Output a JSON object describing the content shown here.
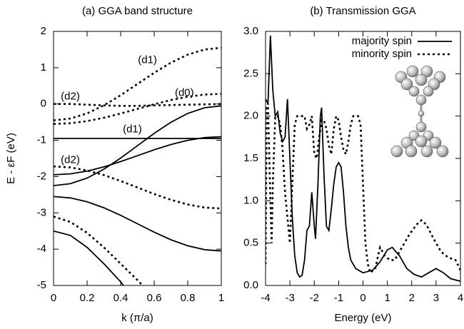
{
  "chart_data": [
    {
      "type": "line",
      "title": "(a) GGA band structure",
      "xlabel": "k (π/a)",
      "ylabel": "E - εF (eV)",
      "xlim": [
        0,
        1
      ],
      "xticks": [
        0,
        0.2,
        0.4,
        0.6,
        0.8,
        1
      ],
      "ylim": [
        -5,
        2
      ],
      "yticks": [
        -5,
        -4,
        -3,
        -2,
        -1,
        0,
        1,
        2
      ],
      "series": [
        {
          "style": "solid",
          "color": "#000000",
          "x": [
            0,
            0.1,
            0.2,
            0.3,
            0.4,
            0.5,
            0.6,
            0.7,
            0.8,
            0.9,
            1
          ],
          "values": [
            -0.95,
            -0.95,
            -0.95,
            -0.95,
            -0.95,
            -0.95,
            -0.95,
            -0.95,
            -0.95,
            -0.95,
            -0.95
          ]
        },
        {
          "style": "solid",
          "color": "#000000",
          "x": [
            0,
            0.1,
            0.2,
            0.3,
            0.4,
            0.5,
            0.6,
            0.7,
            0.8,
            0.9,
            1
          ],
          "values": [
            -2.25,
            -2.196,
            -2.04,
            -1.797,
            -1.49,
            -1.15,
            -0.81,
            -0.503,
            -0.26,
            -0.104,
            -0.05
          ]
        },
        {
          "style": "solid",
          "color": "#000000",
          "x": [
            0,
            0.1,
            0.2,
            0.3,
            0.4,
            0.5,
            0.6,
            0.7,
            0.8,
            0.9,
            1
          ],
          "values": [
            -1.95,
            -1.924,
            -1.85,
            -1.734,
            -1.587,
            -1.425,
            -1.263,
            -1.116,
            -1.0,
            -0.926,
            -0.9
          ]
        },
        {
          "style": "solid",
          "color": "#000000",
          "x": [
            0,
            0.1,
            0.2,
            0.3,
            0.4,
            0.5,
            0.6,
            0.7,
            0.8,
            0.9,
            1
          ],
          "values": [
            -2.55,
            -2.587,
            -2.693,
            -2.859,
            -3.068,
            -3.3,
            -3.532,
            -3.741,
            -3.907,
            -4.013,
            -4.05
          ]
        },
        {
          "style": "solid",
          "color": "#000000",
          "x": [
            0,
            0.1,
            0.2,
            0.3,
            0.4,
            0.45
          ],
          "values": [
            -3.5,
            -3.62,
            -3.95,
            -4.4,
            -4.9,
            -5.2
          ]
        },
        {
          "style": "dotted",
          "color": "#000000",
          "x": [
            0,
            0.1,
            0.2,
            0.3,
            0.4,
            0.5,
            0.6,
            0.7,
            0.8,
            0.9,
            1
          ],
          "values": [
            -0.45,
            -0.401,
            -0.259,
            -0.038,
            0.241,
            0.55,
            0.859,
            1.138,
            1.359,
            1.501,
            1.55
          ]
        },
        {
          "style": "dotted",
          "color": "#000000",
          "x": [
            0,
            0.1,
            0.2,
            0.3,
            0.4,
            0.5,
            0.6,
            0.7,
            0.8,
            0.9,
            1
          ],
          "values": [
            0,
            0,
            -0.02,
            -0.04,
            -0.05,
            -0.05,
            -0.04,
            -0.03,
            -0.02,
            -0.01,
            0
          ]
        },
        {
          "style": "dotted",
          "color": "#000000",
          "x": [
            0,
            0.1,
            0.2,
            0.3,
            0.4,
            0.5,
            0.6,
            0.7,
            0.8,
            0.9,
            1
          ],
          "values": [
            -0.55,
            -0.53,
            -0.471,
            -0.379,
            -0.263,
            -0.135,
            -0.007,
            0.109,
            0.201,
            0.26,
            0.28
          ]
        },
        {
          "style": "dotted",
          "color": "#000000",
          "x": [
            0,
            0.1,
            0.2,
            0.3,
            0.4,
            0.5,
            0.6,
            0.7,
            0.8,
            0.9,
            1
          ],
          "values": [
            -1.72,
            -1.748,
            -1.831,
            -1.959,
            -2.121,
            -2.3,
            -2.479,
            -2.641,
            -2.769,
            -2.852,
            -2.88
          ]
        },
        {
          "style": "dotted",
          "color": "#000000",
          "x": [
            0,
            0.1,
            0.2,
            0.3,
            0.4,
            0.5,
            0.55
          ],
          "values": [
            -3.1,
            -3.25,
            -3.55,
            -3.95,
            -4.4,
            -4.85,
            -5.1
          ]
        }
      ],
      "annotations": [
        {
          "text": "(d1)",
          "x": 0.56,
          "y": 1.2
        },
        {
          "text": "(d2)",
          "x": 0.1,
          "y": 0.2
        },
        {
          "text": "(d0)",
          "x": 0.78,
          "y": 0.3
        },
        {
          "text": "(d1)",
          "x": 0.47,
          "y": -0.7
        },
        {
          "text": "(d2)",
          "x": 0.1,
          "y": -1.55
        }
      ]
    },
    {
      "type": "line",
      "title": "(b) Transmission GGA",
      "xlabel": "Energy  (eV)",
      "xlim": [
        -4,
        4
      ],
      "xticks": [
        -4,
        -3,
        -2,
        -1,
        0,
        1,
        2,
        3,
        4
      ],
      "ylim": [
        0,
        3
      ],
      "yticks": [
        {
          "value": 0,
          "label": "0.0"
        },
        0.5,
        {
          "value": 1,
          "label": "1.0"
        },
        1.5,
        {
          "value": 2,
          "label": "2.0"
        },
        2.5,
        {
          "value": 3,
          "label": "3.0"
        }
      ],
      "legend": "top-right",
      "series": [
        {
          "name": "majority spin",
          "style": "solid",
          "color": "#000000",
          "x": [
            -4,
            -3.9,
            -3.8,
            -3.7,
            -3.6,
            -3.5,
            -3.4,
            -3.3,
            -3.2,
            -3.1,
            -3.0,
            -2.9,
            -2.8,
            -2.7,
            -2.6,
            -2.5,
            -2.4,
            -2.3,
            -2.2,
            -2.1,
            -2.0,
            -1.95,
            -1.85,
            -1.75,
            -1.7,
            -1.6,
            -1.5,
            -1.4,
            -1.3,
            -1.2,
            -1.1,
            -1.0,
            -0.9,
            -0.8,
            -0.7,
            -0.6,
            -0.5,
            -0.3,
            0,
            0.4,
            0.7,
            1.0,
            1.2,
            1.5,
            1.8,
            2.1,
            2.4,
            2.7,
            3.0,
            3.3,
            3.6,
            4.0
          ],
          "values": [
            2.2,
            2.15,
            2.95,
            2.3,
            2.0,
            2.05,
            1.8,
            1.7,
            1.75,
            2.2,
            1.5,
            0.8,
            0.35,
            0.15,
            0.1,
            0.12,
            0.3,
            0.65,
            0.7,
            1.1,
            0.7,
            0.55,
            1.2,
            2.0,
            2.1,
            1.3,
            0.7,
            0.65,
            0.9,
            1.2,
            1.4,
            1.45,
            1.4,
            1.1,
            0.7,
            0.45,
            0.3,
            0.2,
            0.15,
            0.18,
            0.28,
            0.42,
            0.45,
            0.35,
            0.2,
            0.13,
            0.1,
            0.15,
            0.2,
            0.15,
            0.08,
            0.05
          ]
        },
        {
          "name": "minority spin",
          "style": "dotted",
          "color": "#000000",
          "x": [
            -4,
            -3.95,
            -3.9,
            -3.8,
            -3.75,
            -3.7,
            -3.6,
            -3.5,
            -3.4,
            -3.3,
            -3.2,
            -3.1,
            -3.0,
            -2.9,
            -2.8,
            -2.7,
            -2.6,
            -2.5,
            -2.4,
            -2.3,
            -2.2,
            -2.1,
            -2.0,
            -1.9,
            -1.8,
            -1.7,
            -1.6,
            -1.5,
            -1.4,
            -1.3,
            -1.2,
            -1.1,
            -1.0,
            -0.9,
            -0.8,
            -0.7,
            -0.6,
            -0.5,
            -0.4,
            -0.2,
            -0.1,
            0,
            0.1,
            0.2,
            0.3,
            0.5,
            0.7,
            0.9,
            1.1,
            1.3,
            1.6,
            1.9,
            2.2,
            2.4,
            2.6,
            2.9,
            3.2,
            3.5,
            3.8,
            4.0
          ],
          "values": [
            0.25,
            2.1,
            2.15,
            1.0,
            0.5,
            1.2,
            2.0,
            2.0,
            1.9,
            1.6,
            1.1,
            0.8,
            0.5,
            1.2,
            1.9,
            2.0,
            2.0,
            2.0,
            2.0,
            1.85,
            1.9,
            2.0,
            1.55,
            1.5,
            1.75,
            1.95,
            1.95,
            1.85,
            1.65,
            1.55,
            1.85,
            2.0,
            1.95,
            1.75,
            1.6,
            1.55,
            1.7,
            1.9,
            2.0,
            2.0,
            1.9,
            1.2,
            0.5,
            0.25,
            0.15,
            0.2,
            0.45,
            0.35,
            0.3,
            0.3,
            0.45,
            0.6,
            0.72,
            0.77,
            0.72,
            0.55,
            0.4,
            0.33,
            0.3,
            0.18
          ]
        }
      ]
    }
  ]
}
